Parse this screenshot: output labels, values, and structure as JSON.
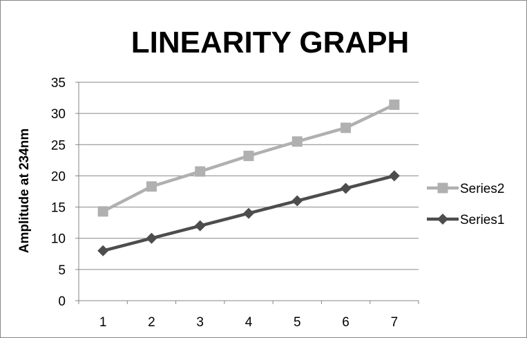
{
  "chart_data": {
    "type": "line",
    "title": "LINEARITY GRAPH",
    "xlabel": "",
    "ylabel": "Amplitude at 234nm",
    "x": [
      1,
      2,
      3,
      4,
      5,
      6,
      7
    ],
    "ylim": [
      0,
      35
    ],
    "yticks": [
      0,
      5,
      10,
      15,
      20,
      25,
      30,
      35
    ],
    "grid": true,
    "legend_position": "right",
    "series": [
      {
        "name": "Series2",
        "values": [
          14.3,
          18.3,
          20.7,
          23.2,
          25.5,
          27.7,
          31.4
        ],
        "color": "#b0b0b0",
        "marker": "square"
      },
      {
        "name": "Series1",
        "values": [
          8,
          10,
          12,
          14,
          16,
          18,
          20
        ],
        "color": "#4d4d4d",
        "marker": "diamond"
      }
    ]
  }
}
